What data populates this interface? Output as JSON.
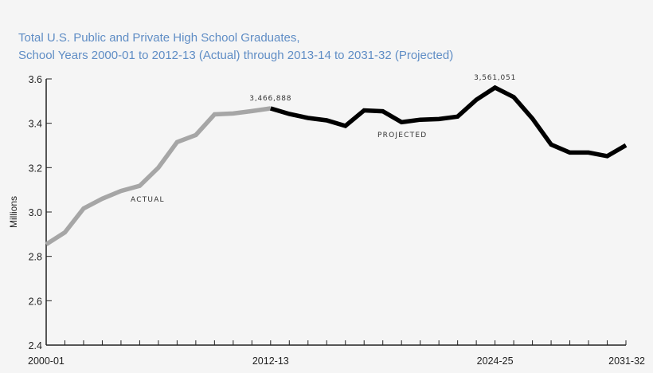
{
  "title": {
    "line1": "Total U.S. Public and Private High School Graduates,",
    "line2": "School Years 2000-01 to 2012-13 (Actual) through 2013-14 to 2031-32 (Projected)",
    "color": "#5f8dc5"
  },
  "colors": {
    "background": "#f5f5f5",
    "actual_line": "#a6a6a6",
    "projected_line": "#000000",
    "axis": "#222222"
  },
  "chart_data": {
    "type": "line",
    "title": "Total U.S. Public and Private High School Graduates, School Years 2000-01 to 2012-13 (Actual) through 2013-14 to 2031-32 (Projected)",
    "xlabel": "",
    "ylabel": "Millions",
    "ylim": [
      2.4,
      3.6
    ],
    "yticks": [
      "2.4",
      "2.6",
      "2.8",
      "3.0",
      "3.2",
      "3.4",
      "3.6"
    ],
    "xtick_labels": [
      "2000-01",
      "2012-13",
      "2024-25",
      "2031-32"
    ],
    "grid": false,
    "x": [
      "2000-01",
      "2001-02",
      "2002-03",
      "2003-04",
      "2004-05",
      "2005-06",
      "2006-07",
      "2007-08",
      "2008-09",
      "2009-10",
      "2010-11",
      "2011-12",
      "2012-13",
      "2013-14",
      "2014-15",
      "2015-16",
      "2016-17",
      "2017-18",
      "2018-19",
      "2019-20",
      "2020-21",
      "2021-22",
      "2022-23",
      "2023-24",
      "2024-25",
      "2025-26",
      "2026-27",
      "2027-28",
      "2028-29",
      "2029-30",
      "2030-31",
      "2031-32"
    ],
    "series": [
      {
        "name": "Actual",
        "label": "ACTUAL",
        "color": "#a6a6a6",
        "start_index": 0,
        "values": [
          2.854,
          2.908,
          3.016,
          3.06,
          3.095,
          3.118,
          3.2,
          3.315,
          3.347,
          3.44,
          3.444,
          3.455,
          3.467
        ]
      },
      {
        "name": "Projected",
        "label": "PROJECTED",
        "color": "#000000",
        "start_index": 12,
        "values": [
          3.467,
          3.442,
          3.424,
          3.413,
          3.388,
          3.458,
          3.454,
          3.405,
          3.416,
          3.419,
          3.43,
          3.506,
          3.561,
          3.518,
          3.421,
          3.304,
          3.268,
          3.268,
          3.252,
          3.301
        ]
      }
    ],
    "annotations": [
      {
        "text": "3,466,888",
        "x": "2012-13",
        "value": 3.466888
      },
      {
        "text": "3,561,051",
        "x": "2024-25",
        "value": 3.561051
      },
      {
        "text": "ACTUAL",
        "x": "2005-06"
      },
      {
        "text": "PROJECTED",
        "x": "2019-20"
      }
    ]
  }
}
